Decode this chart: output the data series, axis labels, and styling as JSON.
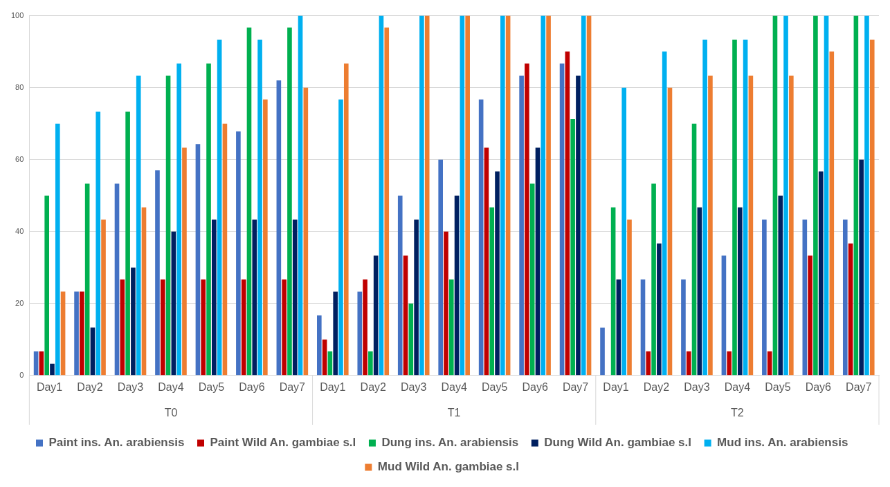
{
  "chart_data": {
    "type": "bar",
    "categories": [
      "Day1",
      "Day2",
      "Day3",
      "Day4",
      "Day5",
      "Day6",
      "Day7",
      "Day1",
      "Day2",
      "Day3",
      "Day4",
      "Day5",
      "Day6",
      "Day7",
      "Day1",
      "Day2",
      "Day3",
      "Day4",
      "Day5",
      "Day6",
      "Day7"
    ],
    "annotations": [
      "T0",
      "T1",
      "T2"
    ],
    "series": [
      {
        "name": "Paint ins. An. arabiensis",
        "color": "#4472c4",
        "values": [
          6.7,
          23.3,
          53.3,
          57,
          64.3,
          67.8,
          82,
          16.7,
          23.3,
          50,
          60,
          76.7,
          83.3,
          86.7,
          13.3,
          26.7,
          26.7,
          33.3,
          43.3,
          43.3,
          43.3
        ]
      },
      {
        "name": "Paint Wild An. gambiae s.l",
        "color": "#c00000",
        "values": [
          6.7,
          23.3,
          26.7,
          26.7,
          26.7,
          26.7,
          26.7,
          10,
          26.7,
          33.3,
          40,
          63.3,
          86.7,
          90,
          0,
          6.7,
          6.7,
          6.7,
          6.7,
          33.3,
          36.7
        ]
      },
      {
        "name": "Dung ins. An. arabiensis",
        "color": "#00b050",
        "values": [
          50,
          53.3,
          73.3,
          83.3,
          86.7,
          96.7,
          96.7,
          6.7,
          6.7,
          20,
          26.7,
          46.7,
          53.3,
          71.3,
          46.7,
          53.3,
          70,
          93.3,
          100,
          100,
          100
        ]
      },
      {
        "name": "Dung Wild An. gambiae s.l",
        "color": "#002060",
        "values": [
          3.3,
          13.3,
          30,
          40,
          43.3,
          43.3,
          43.3,
          23.3,
          33.3,
          43.3,
          50,
          56.7,
          63.3,
          83.3,
          26.7,
          36.7,
          46.7,
          46.7,
          50,
          56.7,
          60
        ]
      },
      {
        "name": "Mud ins. An. arabiensis",
        "color": "#00b0f0",
        "values": [
          70,
          73.3,
          83.3,
          86.7,
          93.3,
          93.3,
          100,
          76.7,
          100,
          100,
          100,
          100,
          100,
          100,
          80,
          90,
          93.3,
          93.3,
          100,
          100,
          100
        ]
      },
      {
        "name": "Mud Wild An. gambiae s.l",
        "color": "#ed7d31",
        "values": [
          23.3,
          43.3,
          46.7,
          63.3,
          70,
          76.7,
          80,
          86.7,
          96.7,
          100,
          100,
          100,
          100,
          100,
          43.3,
          80,
          83.3,
          83.3,
          83.3,
          90,
          93.3
        ]
      }
    ],
    "ylim": [
      0,
      100
    ],
    "yticks": [
      0,
      20,
      40,
      60,
      80,
      100
    ],
    "grid": "y",
    "legend": "bottom"
  }
}
